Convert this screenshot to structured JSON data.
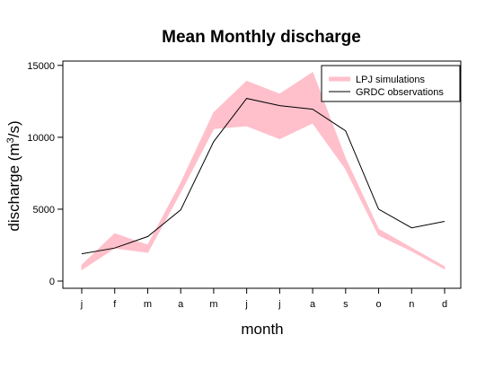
{
  "colors": {
    "band": "#ffc0cb",
    "line": "#000000",
    "frame": "#000000"
  },
  "chart_data": {
    "type": "area",
    "title": "Mean Monthly discharge",
    "xlabel": "month",
    "ylabel_main": "discharge (m",
    "ylabel_sup": "3",
    "ylabel_tail": "/s)",
    "categories": [
      "j",
      "f",
      "m",
      "a",
      "m",
      "j",
      "j",
      "a",
      "s",
      "o",
      "n",
      "d"
    ],
    "ylim": [
      -500,
      15300
    ],
    "yticks": [
      0,
      5000,
      10000,
      15000
    ],
    "grid": false,
    "legend_position": "top-right",
    "series": [
      {
        "name": "LPJ simulations",
        "kind": "band",
        "lower": [
          800,
          2300,
          2000,
          6200,
          10600,
          10800,
          9900,
          11000,
          7800,
          3200,
          2100,
          850
        ],
        "upper": [
          1100,
          3300,
          2500,
          6800,
          11700,
          13900,
          13000,
          14500,
          8500,
          3600,
          2300,
          1000
        ]
      },
      {
        "name": "GRDC observations",
        "kind": "line",
        "values": [
          1900,
          2300,
          3100,
          4950,
          9700,
          12700,
          12200,
          11950,
          10450,
          5000,
          3700,
          4150
        ]
      }
    ]
  }
}
